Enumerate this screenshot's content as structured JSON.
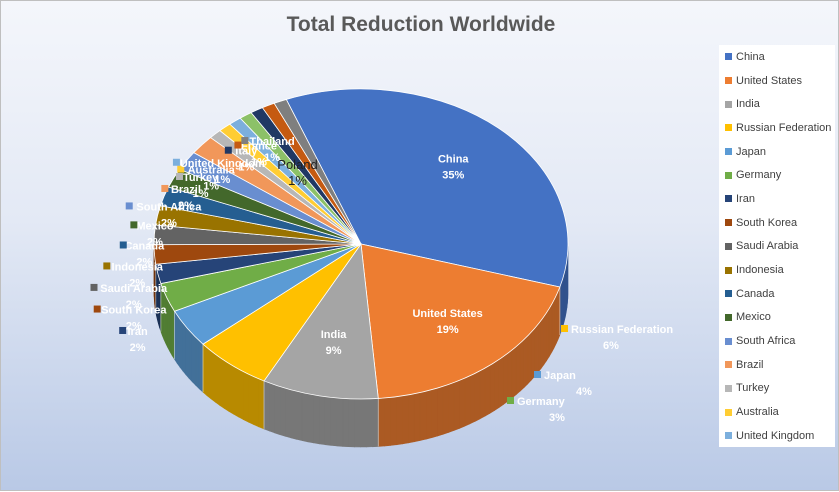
{
  "chart_data": {
    "type": "pie",
    "title": "Total Reduction Worldwide",
    "legend_position": "right",
    "slices": [
      {
        "label": "China",
        "value": 35,
        "color": "#4472C4"
      },
      {
        "label": "United States",
        "value": 19,
        "color": "#ED7D31"
      },
      {
        "label": "India",
        "value": 9,
        "color": "#A5A5A5"
      },
      {
        "label": "Russian Federation",
        "value": 6,
        "color": "#FFC000"
      },
      {
        "label": "Japan",
        "value": 4,
        "color": "#5B9BD5"
      },
      {
        "label": "Germany",
        "value": 3,
        "color": "#70AD47"
      },
      {
        "label": "Iran",
        "value": 2,
        "color": "#264478"
      },
      {
        "label": "South Korea",
        "value": 2,
        "color": "#9E480E"
      },
      {
        "label": "Saudi Arabia",
        "value": 2,
        "color": "#636363"
      },
      {
        "label": "Indonesia",
        "value": 2,
        "color": "#997300"
      },
      {
        "label": "Canada",
        "value": 2,
        "color": "#255E91"
      },
      {
        "label": "Mexico",
        "value": 2,
        "color": "#43682B"
      },
      {
        "label": "South Africa",
        "value": 2,
        "color": "#698ED0"
      },
      {
        "label": "Brazil",
        "value": 2,
        "color": "#F1975A"
      },
      {
        "label": "Turkey",
        "value": 1,
        "color": "#B7B7B7"
      },
      {
        "label": "Australia",
        "value": 1,
        "color": "#FFCD33"
      },
      {
        "label": "United Kingdom",
        "value": 1,
        "color": "#7CAFDD"
      },
      {
        "label": "Poland",
        "value": 1,
        "color": "#8CC168"
      },
      {
        "label": "Italy",
        "value": 1,
        "color": "#203864"
      },
      {
        "label": "France",
        "value": 1,
        "color": "#C55A11"
      },
      {
        "label": "Thailand",
        "value": 1,
        "color": "#7F7F7F"
      }
    ],
    "legend_items": [
      "China",
      "United States",
      "India",
      "Russian Federation",
      "Japan",
      "Germany",
      "Iran",
      "South Korea",
      "Saudi Arabia",
      "Indonesia",
      "Canada",
      "Mexico",
      "South Africa",
      "Brazil",
      "Turkey",
      "Australia",
      "United Kingdom"
    ]
  }
}
